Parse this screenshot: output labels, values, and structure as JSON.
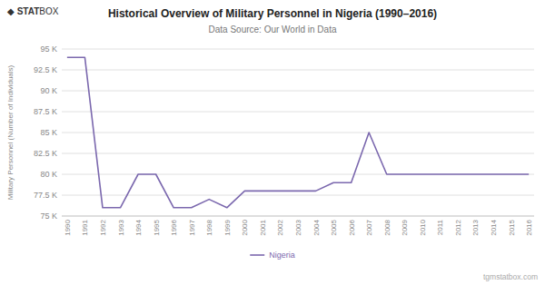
{
  "chart_data": {
    "type": "line",
    "title": "Historical Overview of Military Personnel in Nigeria (1990–2016)",
    "subtitle": "Data Source: Our World in Data",
    "ylabel": "Military Personnel (Number of Individuals)",
    "annotations": [
      "◆",
      "STAT",
      "BOX",
      "tgmstatbox.com"
    ],
    "x": [
      1990,
      1991,
      1992,
      1993,
      1994,
      1995,
      1996,
      1997,
      1998,
      1999,
      2000,
      2001,
      2002,
      2003,
      2004,
      2005,
      2006,
      2007,
      2008,
      2009,
      2010,
      2011,
      2012,
      2013,
      2014,
      2015,
      2016
    ],
    "series": [
      {
        "name": "Nigeria",
        "color": "#7B68AE",
        "values": [
          94000,
          94000,
          76000,
          76000,
          80000,
          80000,
          76000,
          76000,
          77000,
          76000,
          78000,
          78000,
          78000,
          78000,
          78000,
          79000,
          79000,
          85000,
          80000,
          80000,
          80000,
          80000,
          80000,
          80000,
          80000,
          80000,
          80000
        ]
      }
    ],
    "xlim": [
      1989.7,
      2016.3
    ],
    "xticks": [
      1990,
      1991,
      1992,
      1993,
      1994,
      1995,
      1996,
      1997,
      1998,
      1999,
      2000,
      2001,
      2002,
      2003,
      2004,
      2005,
      2006,
      2007,
      2008,
      2009,
      2010,
      2011,
      2012,
      2013,
      2014,
      2015,
      2016
    ],
    "ylim": [
      75000,
      95000
    ],
    "yticks": [
      {
        "value": 75000,
        "label": "75 K"
      },
      {
        "value": 77500,
        "label": "77.5 K"
      },
      {
        "value": 80000,
        "label": "80 K"
      },
      {
        "value": 82500,
        "label": "82.5 K"
      },
      {
        "value": 85000,
        "label": "85 K"
      },
      {
        "value": 87500,
        "label": "87.5 K"
      },
      {
        "value": 90000,
        "label": "90 K"
      },
      {
        "value": 92500,
        "label": "92.5 K"
      },
      {
        "value": 95000,
        "label": "95 K"
      }
    ],
    "grid": true,
    "legend": "bottom"
  }
}
